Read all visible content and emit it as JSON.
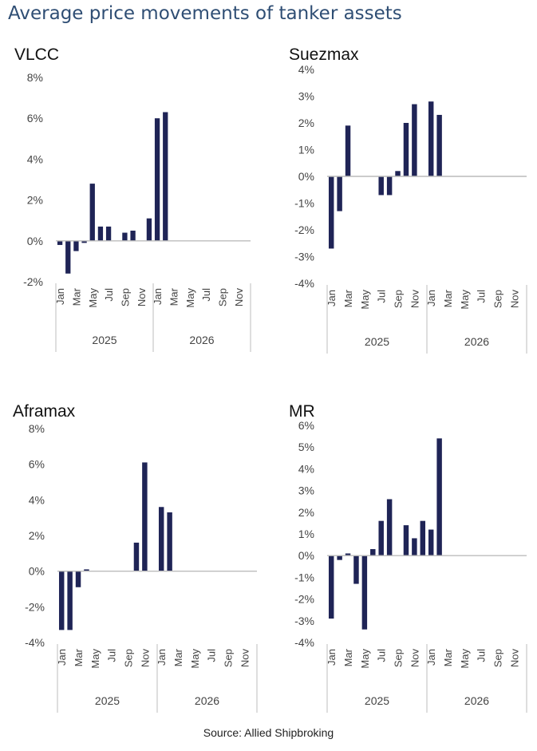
{
  "title": "Average price movements of tanker assets",
  "source": "Source: Allied Shipbroking",
  "bar_color": "#1f2456",
  "title_color": "#2f4e74",
  "chart_data": [
    {
      "type": "bar",
      "title": "VLCC",
      "categories": [
        "Jan",
        "Feb",
        "Mar",
        "Apr",
        "May",
        "Jun",
        "Jul",
        "Aug",
        "Sep",
        "Oct",
        "Nov",
        "Dec",
        "Jan",
        "Feb",
        "Mar",
        "Apr",
        "May",
        "Jun",
        "Jul",
        "Aug",
        "Sep",
        "Oct",
        "Nov",
        "Dec"
      ],
      "month_labels": [
        "Jan",
        "Mar",
        "May",
        "Jul",
        "Sep",
        "Nov",
        "Jan",
        "Mar",
        "May",
        "Jul",
        "Sep",
        "Nov"
      ],
      "years": [
        "2025",
        "2026"
      ],
      "values": [
        -0.2,
        -1.6,
        -0.5,
        -0.1,
        2.8,
        0.7,
        0.7,
        0,
        0.4,
        0.5,
        0,
        1.1,
        6.0,
        6.3,
        null,
        null,
        null,
        null,
        null,
        null,
        null,
        null,
        null,
        null
      ],
      "yticks": [
        "8%",
        "6%",
        "4%",
        "2%",
        "0%",
        "-2%"
      ],
      "ylim": [
        -2,
        8
      ]
    },
    {
      "type": "bar",
      "title": "Suezmax",
      "categories": [
        "Jan",
        "Feb",
        "Mar",
        "Apr",
        "May",
        "Jun",
        "Jul",
        "Aug",
        "Sep",
        "Oct",
        "Nov",
        "Dec",
        "Jan",
        "Feb",
        "Mar",
        "Apr",
        "May",
        "Jun",
        "Jul",
        "Aug",
        "Sep",
        "Oct",
        "Nov",
        "Dec"
      ],
      "month_labels": [
        "Jan",
        "Mar",
        "May",
        "Jul",
        "Sep",
        "Nov",
        "Jan",
        "Mar",
        "May",
        "Jul",
        "Sep",
        "Nov"
      ],
      "years": [
        "2025",
        "2026"
      ],
      "values": [
        -2.7,
        -1.3,
        1.9,
        0,
        0,
        0,
        -0.7,
        -0.7,
        0.2,
        2.0,
        2.7,
        0,
        2.8,
        2.3,
        null,
        null,
        null,
        null,
        null,
        null,
        null,
        null,
        null,
        null
      ],
      "yticks": [
        "4%",
        "3%",
        "2%",
        "1%",
        "0%",
        "-1%",
        "-2%",
        "-3%",
        "-4%"
      ],
      "ylim": [
        -4,
        4
      ]
    },
    {
      "type": "bar",
      "title": "Aframax",
      "categories": [
        "Jan",
        "Feb",
        "Mar",
        "Apr",
        "May",
        "Jun",
        "Jul",
        "Aug",
        "Sep",
        "Oct",
        "Nov",
        "Dec",
        "Jan",
        "Feb",
        "Mar",
        "Apr",
        "May",
        "Jun",
        "Jul",
        "Aug",
        "Sep",
        "Oct",
        "Nov",
        "Dec"
      ],
      "month_labels": [
        "Jan",
        "Mar",
        "May",
        "Jul",
        "Sep",
        "Nov",
        "Jan",
        "Mar",
        "May",
        "Jul",
        "Sep",
        "Nov"
      ],
      "years": [
        "2025",
        "2026"
      ],
      "values": [
        -3.3,
        -3.3,
        -0.9,
        0.1,
        0,
        0,
        0,
        0,
        0,
        1.6,
        6.1,
        0,
        3.6,
        3.3,
        null,
        null,
        null,
        null,
        null,
        null,
        null,
        null,
        null,
        null
      ],
      "yticks": [
        "8%",
        "6%",
        "4%",
        "2%",
        "0%",
        "-2%",
        "-4%"
      ],
      "ylim": [
        -4,
        8
      ]
    },
    {
      "type": "bar",
      "title": "MR",
      "categories": [
        "Jan",
        "Feb",
        "Mar",
        "Apr",
        "May",
        "Jun",
        "Jul",
        "Aug",
        "Sep",
        "Oct",
        "Nov",
        "Dec",
        "Jan",
        "Feb",
        "Mar",
        "Apr",
        "May",
        "Jun",
        "Jul",
        "Aug",
        "Sep",
        "Oct",
        "Nov",
        "Dec"
      ],
      "month_labels": [
        "Jan",
        "Mar",
        "May",
        "Jul",
        "Sep",
        "Nov",
        "Jan",
        "Mar",
        "May",
        "Jul",
        "Sep",
        "Nov"
      ],
      "years": [
        "2025",
        "2026"
      ],
      "values": [
        -2.9,
        -0.2,
        0.1,
        -1.3,
        -3.4,
        0.3,
        1.6,
        2.6,
        0,
        1.4,
        0.8,
        1.6,
        1.2,
        5.4,
        null,
        null,
        null,
        null,
        null,
        null,
        null,
        null,
        null,
        null
      ],
      "yticks": [
        "6%",
        "5%",
        "4%",
        "3%",
        "2%",
        "1%",
        "0%",
        "-1%",
        "-2%",
        "-3%",
        "-4%"
      ],
      "ylim": [
        -4,
        6
      ]
    }
  ]
}
